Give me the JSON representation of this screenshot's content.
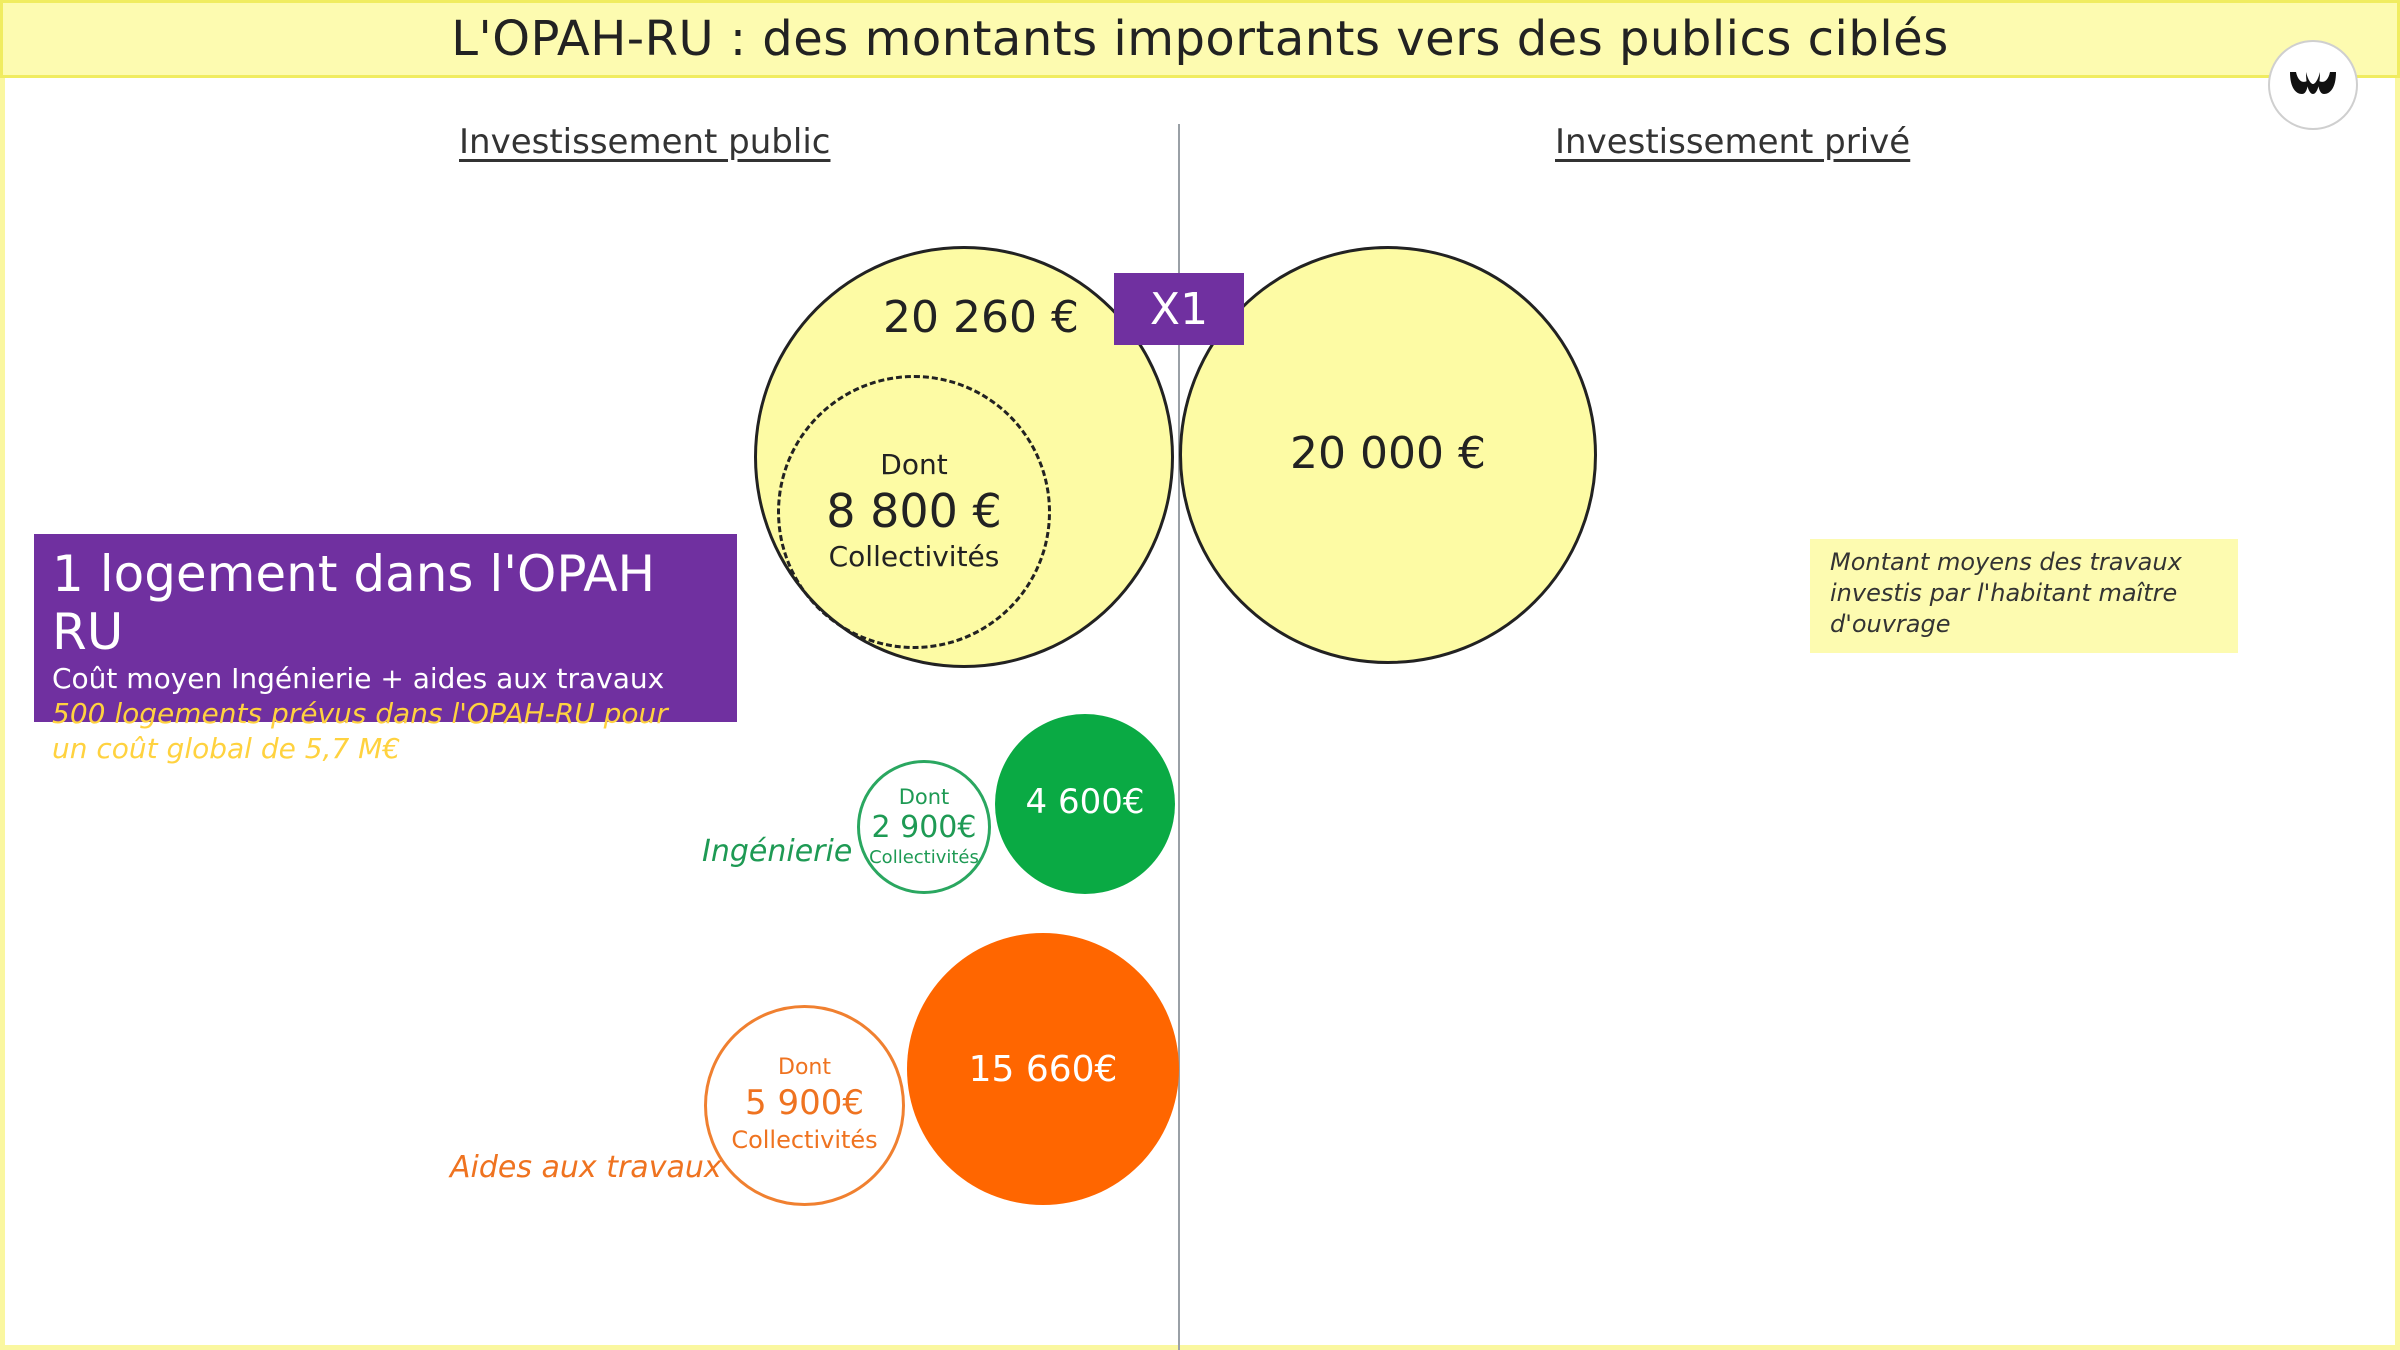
{
  "title": "L'OPAH-RU : des montants importants vers des publics ciblés",
  "colors": {
    "title_bg": "#fdfbb0",
    "yellow_circle": "#fdfba4",
    "purple": "#7030a0",
    "italic_yellow": "#ffd23f",
    "green": "#0aaa44",
    "orange": "#ff6600"
  },
  "logo": {
    "icon": "company-logo-icon"
  },
  "columns": {
    "public": "Investissement public",
    "private": "Investissement privé"
  },
  "public_circle": {
    "amount": "20 260 €",
    "inner_dont": "Dont",
    "inner_amount": "8 800 €",
    "inner_label": "Collectivités"
  },
  "multiplier": "X1",
  "private_circle": {
    "amount": "20 000 €"
  },
  "info_box": {
    "heading": "1 logement dans l'OPAH RU",
    "subtitle": "Coût moyen Ingénierie + aides aux travaux",
    "italic_line1": "500 logements prévus dans l'OPAH-RU pour",
    "italic_line2": "un coût global de 5,7 M€"
  },
  "note": {
    "line1": "Montant moyens  des travaux",
    "line2": "investis par l'habitant maître",
    "line3": "d'ouvrage"
  },
  "ingenierie": {
    "label": "Ingénierie",
    "total": "4 600€",
    "dont": "Dont",
    "amount": "2 900€",
    "collectivites": "Collectivités"
  },
  "aides": {
    "label": "Aides aux travaux",
    "total": "15 660€",
    "dont": "Dont",
    "amount": "5 900€",
    "collectivites": "Collectivités"
  }
}
